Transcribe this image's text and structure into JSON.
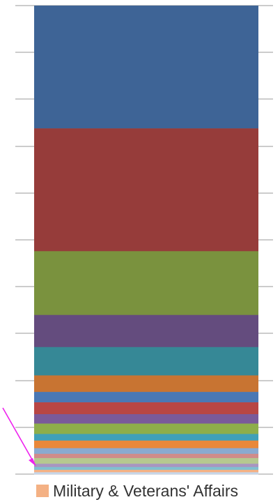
{
  "chart_data": {
    "type": "bar",
    "stacked": true,
    "grid": true,
    "legend_position": "bottom",
    "segments": [
      {
        "color": "#3E6496",
        "value": 26.0
      },
      {
        "color": "#963C3A",
        "value": 26.0
      },
      {
        "color": "#7A923E",
        "value": 13.5
      },
      {
        "color": "#644C7E",
        "value": 6.8
      },
      {
        "color": "#368896",
        "value": 6.0
      },
      {
        "color": "#C87432",
        "value": 3.5
      },
      {
        "color": "#4A78B4",
        "value": 2.2
      },
      {
        "color": "#B84644",
        "value": 2.5
      },
      {
        "color": "#7A5A9A",
        "value": 2.0
      },
      {
        "color": "#8EAE4A",
        "value": 2.2
      },
      {
        "color": "#40A0B8",
        "value": 1.4
      },
      {
        "color": "#E8883A",
        "value": 1.6
      },
      {
        "color": "#8AAAD0",
        "value": 1.2
      },
      {
        "color": "#D08C8A",
        "value": 0.9
      },
      {
        "color": "#B6C890",
        "value": 1.2
      },
      {
        "color": "#A896C0",
        "value": 0.7
      },
      {
        "color": "#80C0D0",
        "value": 0.6
      },
      {
        "color": "#F4B184",
        "value": 0.5
      },
      {
        "color": "#C6D6EA",
        "value": 0.4
      }
    ],
    "legend": [
      {
        "label": "Military & Veterans' Affairs",
        "color": "#F4B184"
      }
    ],
    "annotation_arrow_color": "#EE22EE"
  }
}
